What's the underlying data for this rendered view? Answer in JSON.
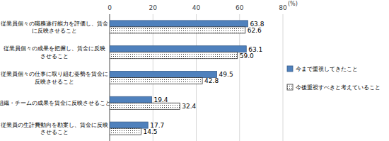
{
  "chart_data": {
    "type": "bar",
    "orientation": "horizontal",
    "categories": [
      "従業員個々の職務遂行能力を評価し、賃金\nに反映させること",
      "従業員個々の成果を把握し、賃金に反映\nさせること",
      "従業員個々の仕事に取り組む姿勢を賃金に\n反映させること",
      "組織・チームの成果を賃金に反映させること",
      "従業員の生計費動向を勘案し、賃金に反映\nさせること"
    ],
    "series": [
      {
        "name": "今まで重視してきたこと",
        "color": "#4f81bd",
        "values": [
          63.8,
          63.1,
          49.5,
          19.4,
          17.7
        ]
      },
      {
        "name": "今後重視すべきと考えていること",
        "color": "#ffffff",
        "values": [
          62.6,
          59.0,
          42.8,
          32.4,
          14.5
        ]
      }
    ],
    "value_labels": [
      [
        "63.8",
        "63.1",
        "49.5",
        "19.4",
        "17.7"
      ],
      [
        "62.6",
        "59.0",
        "42.8",
        "32.4",
        "14.5"
      ]
    ],
    "ylabel": "(%)",
    "ylim": [
      0,
      80
    ],
    "yticks": [
      0,
      20,
      40,
      60,
      80
    ],
    "grid": true,
    "legend": "right",
    "data_labels": true
  }
}
